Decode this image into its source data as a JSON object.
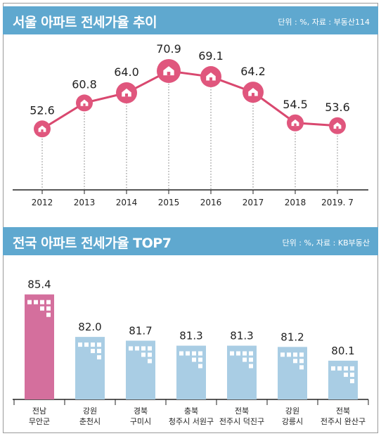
{
  "colors": {
    "banner": "#5fa8cf",
    "line": "#d9486f",
    "marker": "#e0567d",
    "bar_top": "#d46f9d",
    "bar_other": "#a9cde4",
    "window": "#ffffff"
  },
  "top_chart": {
    "title": "서울 아파트 전세가율 추이",
    "source": "단위 : %, 자료 : 부동산114",
    "chart_data": {
      "type": "line",
      "x": [
        "2012",
        "2013",
        "2014",
        "2015",
        "2016",
        "2017",
        "2018",
        "2019. 7"
      ],
      "values": [
        52.6,
        60.8,
        64.0,
        70.9,
        69.1,
        64.2,
        54.5,
        53.6
      ],
      "value_labels": [
        "52.6",
        "60.8",
        "64.0",
        "70.9",
        "69.1",
        "64.2",
        "54.5",
        "53.6"
      ],
      "marker_icon": "house-icon",
      "ylim": [
        40,
        80
      ],
      "grid": false
    }
  },
  "bottom_chart": {
    "title": "전국 아파트 전세가율 TOP7",
    "source": "단위 : %, 자료 : KB부동산",
    "chart_data": {
      "type": "bar",
      "categories": [
        [
          "전남",
          "무안군"
        ],
        [
          "강원",
          "춘천시"
        ],
        [
          "경북",
          "구미시"
        ],
        [
          "충북",
          "청주시 서원구"
        ],
        [
          "전북",
          "전주시 덕진구"
        ],
        [
          "강원",
          "강릉시"
        ],
        [
          "전북",
          "전주시 완산구"
        ]
      ],
      "values": [
        85.4,
        82.0,
        81.7,
        81.3,
        81.3,
        81.2,
        80.1
      ],
      "value_labels": [
        "85.4",
        "82.0",
        "81.7",
        "81.3",
        "81.3",
        "81.2",
        "80.1"
      ],
      "highlight_index": 0,
      "ylim": [
        77,
        86
      ]
    }
  }
}
